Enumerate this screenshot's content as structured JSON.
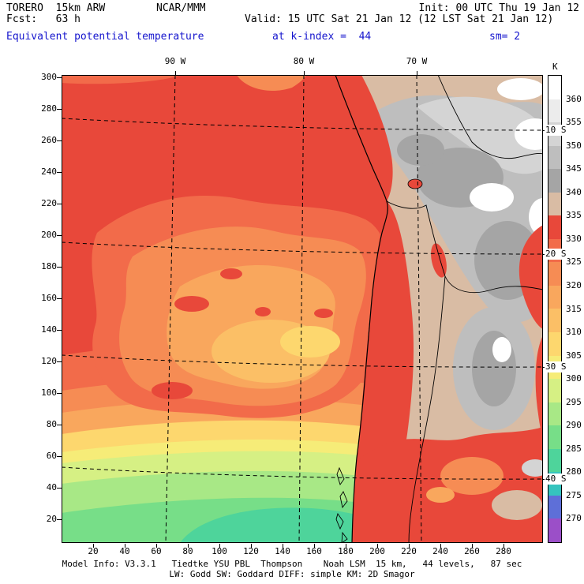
{
  "header": {
    "line1_left": "TORERO  15km ARW",
    "line1_center": "NCAR/MMM",
    "line1_right": "Init: 00 UTC Thu 19 Jan 12",
    "line2_left": "Fcst:   63 h",
    "line2_right": "Valid: 15 UTC Sat 21 Jan 12 (12 LST Sat 21 Jan 12)",
    "line3_field": "Equivalent potential temperature",
    "line3_level": "at k-index =  44",
    "line3_smoothing": "sm= 2",
    "text_color": "#000000",
    "accent_blue": "#1515CD"
  },
  "axes": {
    "x_ticks": [
      "20",
      "40",
      "60",
      "80",
      "100",
      "120",
      "140",
      "160",
      "180",
      "200",
      "220",
      "240",
      "260",
      "280"
    ],
    "y_ticks": [
      "300",
      "280",
      "260",
      "240",
      "220",
      "200",
      "180",
      "160",
      "140",
      "120",
      "100",
      "80",
      "60",
      "40",
      "20"
    ],
    "top_lon_labels": [
      "90 W",
      "80 W",
      "70 W"
    ],
    "right_lat_labels": [
      "10 S",
      "20 S",
      "30 S",
      "40 S"
    ]
  },
  "colorbar": {
    "unit": "K",
    "tick_labels": [
      "360",
      "355",
      "350",
      "345",
      "340",
      "335",
      "330",
      "325",
      "320",
      "315",
      "310",
      "305",
      "300",
      "295",
      "290",
      "285",
      "280",
      "275",
      "270"
    ],
    "colors_top_to_bottom": [
      "#FFFFFF",
      "#ECECEC",
      "#D4D4D4",
      "#BEBEBE",
      "#A5A5A5",
      "#D9BCA4",
      "#E8483A",
      "#F26B4A",
      "#F68C54",
      "#F9A75D",
      "#FBBF66",
      "#FDD76E",
      "#F6EC78",
      "#D6F084",
      "#A8E886",
      "#77DE88",
      "#4ED49B",
      "#35C4BE",
      "#5E6FD8",
      "#9B4FC8"
    ]
  },
  "footer": {
    "line1": "Model Info: V3.3.1   Tiedtke YSU PBL  Thompson    Noah LSM  15 km,   44 levels,   87 sec",
    "line2": "LW: Godd SW: Goddard DIFF: simple KM: 2D Smagor"
  },
  "chart_data": {
    "type": "heatmap",
    "title": "Equivalent potential temperature",
    "level": "k-index = 44",
    "smoothing": "sm= 2",
    "units": "K",
    "model": "TORERO 15km ARW",
    "center": "NCAR/MMM",
    "init_time": "00 UTC Thu 19 Jan 12",
    "forecast_hour": "63 h",
    "valid_time": "15 UTC Sat 21 Jan 12 (12 LST Sat 21 Jan 12)",
    "x_axis": {
      "ticks": [
        20,
        40,
        60,
        80,
        100,
        120,
        140,
        160,
        180,
        200,
        220,
        240,
        260,
        280
      ],
      "geo_labels": [
        "90 W",
        "80 W",
        "70 W"
      ]
    },
    "y_axis": {
      "ticks_top_to_bottom": [
        300,
        280,
        260,
        240,
        220,
        200,
        180,
        160,
        140,
        120,
        100,
        80,
        60,
        40,
        20
      ],
      "geo_labels": [
        "10 S",
        "20 S",
        "30 S",
        "40 S"
      ]
    },
    "contour_levels_K": [
      270,
      275,
      280,
      285,
      290,
      295,
      300,
      305,
      310,
      315,
      320,
      325,
      330,
      335,
      340,
      345,
      350,
      355,
      360
    ],
    "palette_low_to_high": [
      "#9B4FC8",
      "#5E6FD8",
      "#35C4BE",
      "#4ED49B",
      "#77DE88",
      "#A8E886",
      "#D6F084",
      "#F6EC78",
      "#FDD76E",
      "#FBBF66",
      "#F9A75D",
      "#F68C54",
      "#F26B4A",
      "#E8483A",
      "#D9BCA4",
      "#A5A5A5",
      "#BEBEBE",
      "#D4D4D4",
      "#ECECEC",
      "#FFFFFF"
    ],
    "field_regions_approx_K": [
      {
        "region": "tropical and northwest ocean (north of about 22S)",
        "value": "330-335"
      },
      {
        "region": "central subtropical ocean maximum-gradient blob",
        "value": "310-325"
      },
      {
        "region": "southeast ocean 30-38S",
        "value": "295-310"
      },
      {
        "region": "far southern ocean near 40S",
        "value": "285-295"
      },
      {
        "region": "Andes cordillera and altiplano",
        "value": "340 to >360"
      },
      {
        "region": "coastal strip and lowlands east of Andes",
        "value": "330-340"
      }
    ]
  }
}
